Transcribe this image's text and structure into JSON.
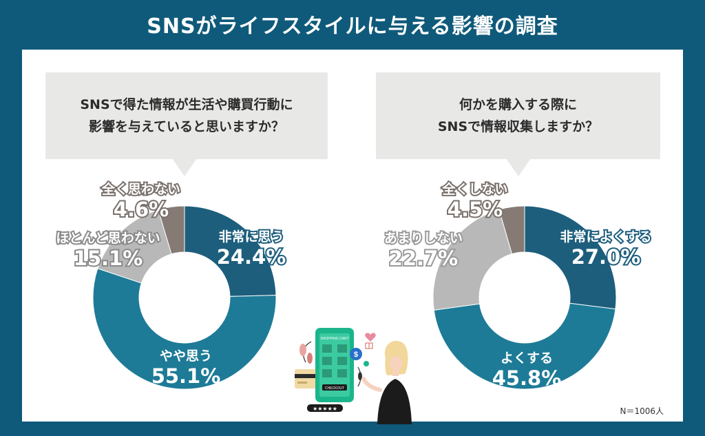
{
  "title": "SNSがライフスタイルに与える影響の調査",
  "note": "N＝1006人",
  "chart_data": [
    {
      "type": "pie",
      "donut": true,
      "question_lines": [
        "SNSで得た情報が生活や購買行動に",
        "影響を与えていると思いますか？"
      ],
      "categories": [
        "非常に思う",
        "やや思う",
        "ほとんど思わない",
        "全く思わない"
      ],
      "values": [
        24.4,
        55.1,
        15.1,
        4.6
      ],
      "value_labels": [
        "24.4%",
        "55.1%",
        "15.1%",
        "4.6%"
      ],
      "colors": [
        "#1d5e7d",
        "#1e7b97",
        "#b8b8b8",
        "#857a74"
      ],
      "unit": "%"
    },
    {
      "type": "pie",
      "donut": true,
      "question_lines": [
        "何かを購入する際に",
        "SNSで情報収集しますか？"
      ],
      "categories": [
        "非常によくする",
        "よくする",
        "あまりしない",
        "全くしない"
      ],
      "values": [
        27.0,
        45.8,
        22.7,
        4.5
      ],
      "value_labels": [
        "27.0%",
        "45.8%",
        "22.7%",
        "4.5%"
      ],
      "colors": [
        "#1d5e7d",
        "#1e7b97",
        "#b8b8b8",
        "#857a74"
      ],
      "unit": "%"
    }
  ],
  "illustration": {
    "phone_header": "SHOPPING CART",
    "phone_button": "CHECKOUT",
    "coin_symbol": "$",
    "rating": "★★★★★",
    "icons": [
      "phone-icon",
      "woman-icon",
      "credit-card-icon",
      "heart-icon",
      "gift-icon",
      "leaf-icon"
    ]
  }
}
